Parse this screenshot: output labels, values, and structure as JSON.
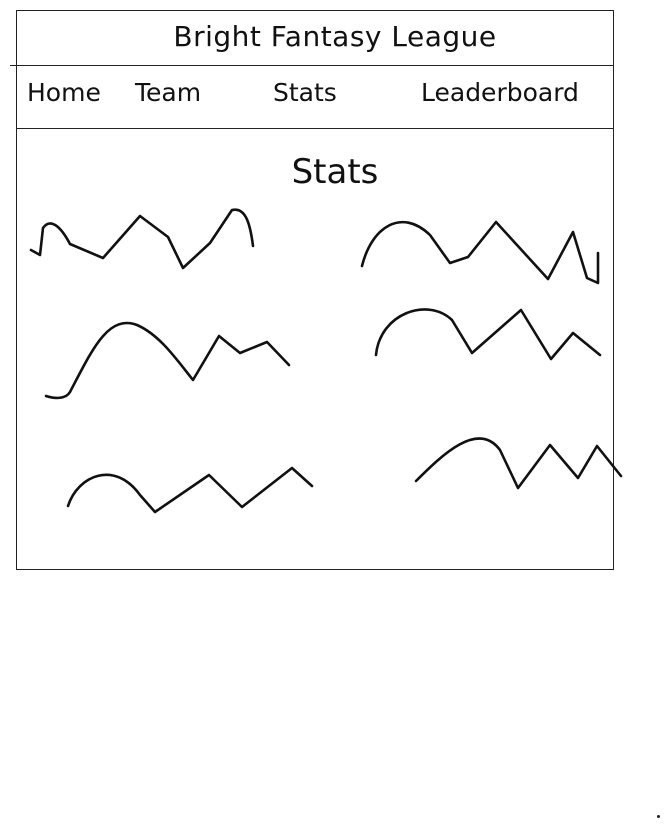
{
  "app": {
    "title": "Bright Fantasy League"
  },
  "nav": {
    "items": [
      {
        "label": "Home"
      },
      {
        "label": "Team"
      },
      {
        "label": "Stats"
      },
      {
        "label": "Leaderboard"
      }
    ]
  },
  "main": {
    "section_title": "Stats",
    "chart_placeholder_count": 6
  }
}
